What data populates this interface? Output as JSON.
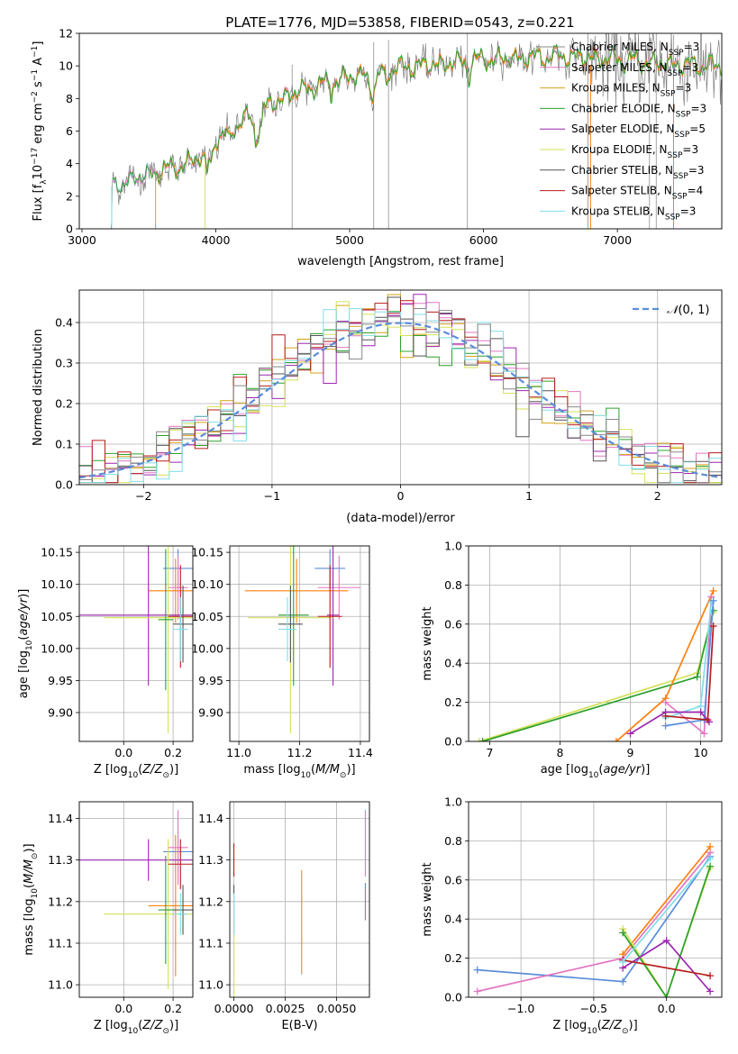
{
  "title": "PLATE=1776, MJD=53858, FIBERID=0543, z=0.221",
  "colors": {
    "Chabrier MILES": "#888888",
    "Salpeter MILES": "#e377c2",
    "Kroupa MILES": "#d4a017",
    "Chabrier ELODIE": "#2ca02c",
    "Salpeter ELODIE": "#9c27b0",
    "Kroupa ELODIE": "#d4e157",
    "Chabrier STELIB": "#555555",
    "Salpeter STELIB": "#b71c1c",
    "Kroupa STELIB": "#80deea",
    "orange": "#ff7f0e",
    "blue": "#5b8dd9",
    "data": "#7f7f7f"
  },
  "chart_data": [
    {
      "id": "spectrum",
      "type": "line",
      "title": "PLATE=1776, MJD=53858, FIBERID=0543, z=0.221",
      "xlabel": "wavelength [Angstrom, rest frame]",
      "ylabel": "Flux [fλ 10⁻¹⁷ erg cm⁻² s⁻¹ A⁻¹]",
      "xlim": [
        2980,
        7780
      ],
      "ylim": [
        0,
        12
      ],
      "xticks": [
        3000,
        4000,
        5000,
        6000,
        7000
      ],
      "yticks": [
        0,
        2,
        4,
        6,
        8,
        10,
        12
      ],
      "grid": false,
      "legend_position": "top-right",
      "continuum": {
        "x": [
          3230,
          3400,
          3600,
          3800,
          3900,
          4000,
          4200,
          4400,
          4600,
          4800,
          5000,
          5200,
          5500,
          5800,
          6000,
          6300,
          6600,
          7000,
          7400,
          7780
        ],
        "y": [
          2.6,
          3.1,
          3.6,
          4.0,
          4.6,
          5.4,
          6.6,
          7.6,
          8.4,
          8.9,
          9.3,
          9.7,
          10.0,
          10.2,
          10.4,
          10.5,
          10.6,
          10.4,
          10.1,
          10.0
        ]
      },
      "legend": [
        "Chabrier MILES, N_SSP=3",
        "Salpeter MILES, N_SSP=3",
        "Kroupa MILES, N_SSP=3",
        "Chabrier ELODIE, N_SSP=3",
        "Salpeter ELODIE, N_SSP=5",
        "Kroupa ELODIE, N_SSP=3",
        "Chabrier STELIB, N_SSP=3",
        "Salpeter STELIB, N_SSP=4",
        "Kroupa STELIB, N_SSP=3"
      ]
    },
    {
      "id": "residuals",
      "type": "histogram",
      "xlabel": "(data-model)/error",
      "ylabel": "Normed distribution",
      "xlim": [
        -2.5,
        2.5
      ],
      "ylim": [
        0,
        0.48
      ],
      "xticks": [
        -2,
        -1,
        0,
        1,
        2
      ],
      "yticks": [
        0.0,
        0.1,
        0.2,
        0.3,
        0.4
      ],
      "grid": true,
      "legend_position": "top-right",
      "legend": [
        "N(0,1)"
      ],
      "bin_width": 0.1,
      "x_start": -2.5,
      "base_curve_mean": 0,
      "base_curve_sigma": 1
    },
    {
      "id": "age_vs_Z",
      "type": "errorbar",
      "xlabel": "Z [log10(Z/Z⊙)]",
      "ylabel": "age  [log10(age/yr)]",
      "xlim": [
        -0.18,
        0.28
      ],
      "ylim": [
        9.855,
        10.16
      ],
      "xticks": [
        0.0,
        0.2
      ],
      "yticks": [
        9.9,
        9.95,
        10.0,
        10.05,
        10.1,
        10.15
      ],
      "grid": true,
      "points": [
        {
          "x": 0.22,
          "y": 10.125,
          "xerr": 0.06,
          "yerr": 0.03,
          "c": "blue"
        },
        {
          "x": 0.21,
          "y": 10.09,
          "xerr": 0.11,
          "yerr": 0.05,
          "c": "orange"
        },
        {
          "x": 0.22,
          "y": 10.095,
          "xerr": 0.04,
          "yerr": 0.05,
          "c": "Salpeter MILES"
        },
        {
          "x": 0.1,
          "y": 10.052,
          "xerr": 0.28,
          "yerr": 0.11,
          "c": "Salpeter ELODIE"
        },
        {
          "x": 0.18,
          "y": 10.048,
          "xerr": 0.26,
          "yerr": 0.18,
          "c": "Kroupa ELODIE"
        },
        {
          "x": 0.17,
          "y": 10.045,
          "xerr": 0.03,
          "yerr": 0.11,
          "c": "Chabrier ELODIE"
        },
        {
          "x": 0.23,
          "y": 10.05,
          "xerr": 0.05,
          "yerr": 0.08,
          "c": "Salpeter STELIB"
        },
        {
          "x": 0.24,
          "y": 10.038,
          "xerr": 0.04,
          "yerr": 0.06,
          "c": "Chabrier STELIB"
        },
        {
          "x": 0.23,
          "y": 10.03,
          "xerr": 0.03,
          "yerr": 0.05,
          "c": "Kroupa STELIB"
        }
      ]
    },
    {
      "id": "age_vs_mass",
      "type": "errorbar",
      "xlabel": "mass [log10(M/M⊙)]",
      "ylabel": "",
      "xlim": [
        10.97,
        11.43
      ],
      "ylim": [
        9.855,
        10.16
      ],
      "xticks": [
        11.0,
        11.2,
        11.4
      ],
      "yticks": [
        9.9,
        9.95,
        10.0,
        10.05,
        10.1,
        10.15
      ],
      "grid": true,
      "points": [
        {
          "x": 11.3,
          "y": 10.125,
          "xerr": 0.05,
          "yerr": 0.03,
          "c": "blue"
        },
        {
          "x": 11.19,
          "y": 10.09,
          "xerr": 0.17,
          "yerr": 0.05,
          "c": "orange"
        },
        {
          "x": 11.33,
          "y": 10.095,
          "xerr": 0.07,
          "yerr": 0.05,
          "c": "Salpeter MILES"
        },
        {
          "x": 11.31,
          "y": 10.052,
          "xerr": 0.02,
          "yerr": 0.11,
          "c": "Salpeter ELODIE"
        },
        {
          "x": 11.17,
          "y": 10.048,
          "xerr": 0.14,
          "yerr": 0.18,
          "c": "Kroupa ELODIE"
        },
        {
          "x": 11.18,
          "y": 10.052,
          "xerr": 0.05,
          "yerr": 0.11,
          "c": "Chabrier ELODIE"
        },
        {
          "x": 11.3,
          "y": 10.05,
          "xerr": 0.04,
          "yerr": 0.08,
          "c": "Salpeter STELIB"
        },
        {
          "x": 11.17,
          "y": 10.038,
          "xerr": 0.04,
          "yerr": 0.06,
          "c": "Chabrier STELIB"
        },
        {
          "x": 11.16,
          "y": 10.03,
          "xerr": 0.03,
          "yerr": 0.05,
          "c": "Kroupa STELIB"
        }
      ]
    },
    {
      "id": "weights_vs_age",
      "type": "line",
      "xlabel": "age  [log10(age/yr)]",
      "ylabel": "mass weight",
      "xlim": [
        6.7,
        10.3
      ],
      "ylim": [
        0,
        1
      ],
      "xticks": [
        7,
        8,
        9,
        10
      ],
      "yticks": [
        0.0,
        0.2,
        0.4,
        0.6,
        0.8,
        1.0
      ],
      "grid": true,
      "series": [
        {
          "c": "Kroupa ELODIE",
          "x": [
            6.85,
            9.95,
            10.18
          ],
          "y": [
            0.0,
            0.35,
            0.66
          ]
        },
        {
          "c": "Chabrier ELODIE",
          "x": [
            6.9,
            9.95,
            10.18
          ],
          "y": [
            0.0,
            0.33,
            0.67
          ]
        },
        {
          "c": "orange",
          "x": [
            8.8,
            9.5,
            10.18
          ],
          "y": [
            0.0,
            0.22,
            0.77
          ]
        },
        {
          "c": "Salpeter MILES",
          "x": [
            9.5,
            10.05,
            10.15
          ],
          "y": [
            0.2,
            0.04,
            0.74
          ]
        },
        {
          "c": "Kroupa STELIB",
          "x": [
            9.5,
            10.0,
            10.15
          ],
          "y": [
            0.12,
            0.18,
            0.71
          ]
        },
        {
          "c": "blue",
          "x": [
            9.5,
            10.05,
            10.18
          ],
          "y": [
            0.08,
            0.11,
            0.72
          ]
        },
        {
          "c": "Salpeter ELODIE",
          "x": [
            9.0,
            9.5,
            10.0,
            10.12
          ],
          "y": [
            0.04,
            0.15,
            0.15,
            0.1
          ]
        },
        {
          "c": "Salpeter STELIB",
          "x": [
            9.5,
            10.1,
            10.18
          ],
          "y": [
            0.13,
            0.11,
            0.59
          ]
        }
      ]
    },
    {
      "id": "mass_vs_Z",
      "type": "errorbar",
      "xlabel": "Z [log10(Z/Z⊙)]",
      "ylabel": "mass [log10(M/M⊙)]",
      "xlim": [
        -0.18,
        0.28
      ],
      "ylim": [
        10.97,
        11.44
      ],
      "xticks": [
        0.0,
        0.2
      ],
      "yticks": [
        11.0,
        11.1,
        11.2,
        11.3,
        11.4
      ],
      "grid": true,
      "points": [
        {
          "x": 0.22,
          "y": 11.32,
          "xerr": 0.06,
          "yerr": 0.05,
          "c": "blue"
        },
        {
          "x": 0.21,
          "y": 11.19,
          "xerr": 0.11,
          "yerr": 0.17,
          "c": "orange"
        },
        {
          "x": 0.22,
          "y": 11.33,
          "xerr": 0.04,
          "yerr": 0.09,
          "c": "Salpeter MILES"
        },
        {
          "x": 0.1,
          "y": 11.3,
          "xerr": 0.28,
          "yerr": 0.05,
          "c": "Salpeter ELODIE"
        },
        {
          "x": 0.18,
          "y": 11.17,
          "xerr": 0.26,
          "yerr": 0.18,
          "c": "Kroupa ELODIE"
        },
        {
          "x": 0.17,
          "y": 11.18,
          "xerr": 0.03,
          "yerr": 0.13,
          "c": "Chabrier ELODIE"
        },
        {
          "x": 0.23,
          "y": 11.29,
          "xerr": 0.05,
          "yerr": 0.06,
          "c": "Salpeter STELIB"
        },
        {
          "x": 0.24,
          "y": 11.18,
          "xerr": 0.04,
          "yerr": 0.06,
          "c": "Chabrier STELIB"
        },
        {
          "x": 0.23,
          "y": 11.17,
          "xerr": 0.03,
          "yerr": 0.05,
          "c": "Kroupa STELIB"
        }
      ]
    },
    {
      "id": "mass_vs_ebv",
      "type": "errorbar",
      "xlabel": "E(B-V)",
      "ylabel": "",
      "xlim": [
        -0.0002,
        0.0066
      ],
      "ylim": [
        10.97,
        11.44
      ],
      "xticks": [
        0.0,
        0.0025,
        0.005
      ],
      "xtick_labels": [
        "0.0000",
        "0.0025",
        "0.0050"
      ],
      "yticks": [
        11.0,
        11.1,
        11.2,
        11.3,
        11.4
      ],
      "grid": true,
      "points": [
        {
          "x": 0.0,
          "y": 11.3,
          "xerr": 0,
          "yerr": 0.04,
          "c": "Salpeter STELIB"
        },
        {
          "x": 0.0,
          "y": 11.18,
          "xerr": 0,
          "yerr": 0.06,
          "c": "Chabrier STELIB"
        },
        {
          "x": 0.0,
          "y": 11.06,
          "xerr": 0,
          "yerr": 0.09,
          "c": "Kroupa ELODIE"
        },
        {
          "x": 0.0,
          "y": 11.17,
          "xerr": 0,
          "yerr": 0.05,
          "c": "Kroupa STELIB"
        },
        {
          "x": 0.0033,
          "y": 11.15,
          "xerr": 0,
          "yerr": 0.125,
          "c": "orange"
        },
        {
          "x": 0.0064,
          "y": 11.34,
          "xerr": 0,
          "yerr": 0.08,
          "c": "Salpeter MILES"
        },
        {
          "x": 0.0064,
          "y": 11.2,
          "xerr": 0,
          "yerr": 0.045,
          "c": "blue"
        }
      ]
    },
    {
      "id": "weights_vs_Z",
      "type": "line",
      "xlabel": "Z [log10(Z/Z⊙)]",
      "ylabel": "mass weight",
      "xlim": [
        -1.36,
        0.38
      ],
      "ylim": [
        0,
        1
      ],
      "xticks": [
        -1.0,
        -0.5,
        0.0
      ],
      "yticks": [
        0.0,
        0.2,
        0.4,
        0.6,
        0.8,
        1.0
      ],
      "grid": true,
      "series": [
        {
          "c": "blue",
          "x": [
            -1.3,
            -0.3,
            0.3
          ],
          "y": [
            0.14,
            0.08,
            0.72
          ]
        },
        {
          "c": "Salpeter MILES",
          "x": [
            -1.3,
            -0.3,
            0.3
          ],
          "y": [
            0.03,
            0.2,
            0.74
          ]
        },
        {
          "c": "orange",
          "x": [
            -0.3,
            0.3
          ],
          "y": [
            0.22,
            0.77
          ]
        },
        {
          "c": "Kroupa ELODIE",
          "x": [
            -0.3,
            0.0,
            0.3
          ],
          "y": [
            0.35,
            0.0,
            0.66
          ]
        },
        {
          "c": "Chabrier ELODIE",
          "x": [
            -0.3,
            0.0,
            0.3
          ],
          "y": [
            0.33,
            0.0,
            0.67
          ]
        },
        {
          "c": "Salpeter ELODIE",
          "x": [
            -0.3,
            0.0,
            0.3
          ],
          "y": [
            0.15,
            0.29,
            0.03
          ]
        },
        {
          "c": "Salpeter STELIB",
          "x": [
            -0.3,
            0.3
          ],
          "y": [
            0.19,
            0.11
          ]
        },
        {
          "c": "Kroupa STELIB",
          "x": [
            -0.3,
            0.3
          ],
          "y": [
            0.18,
            0.71
          ]
        }
      ]
    }
  ]
}
